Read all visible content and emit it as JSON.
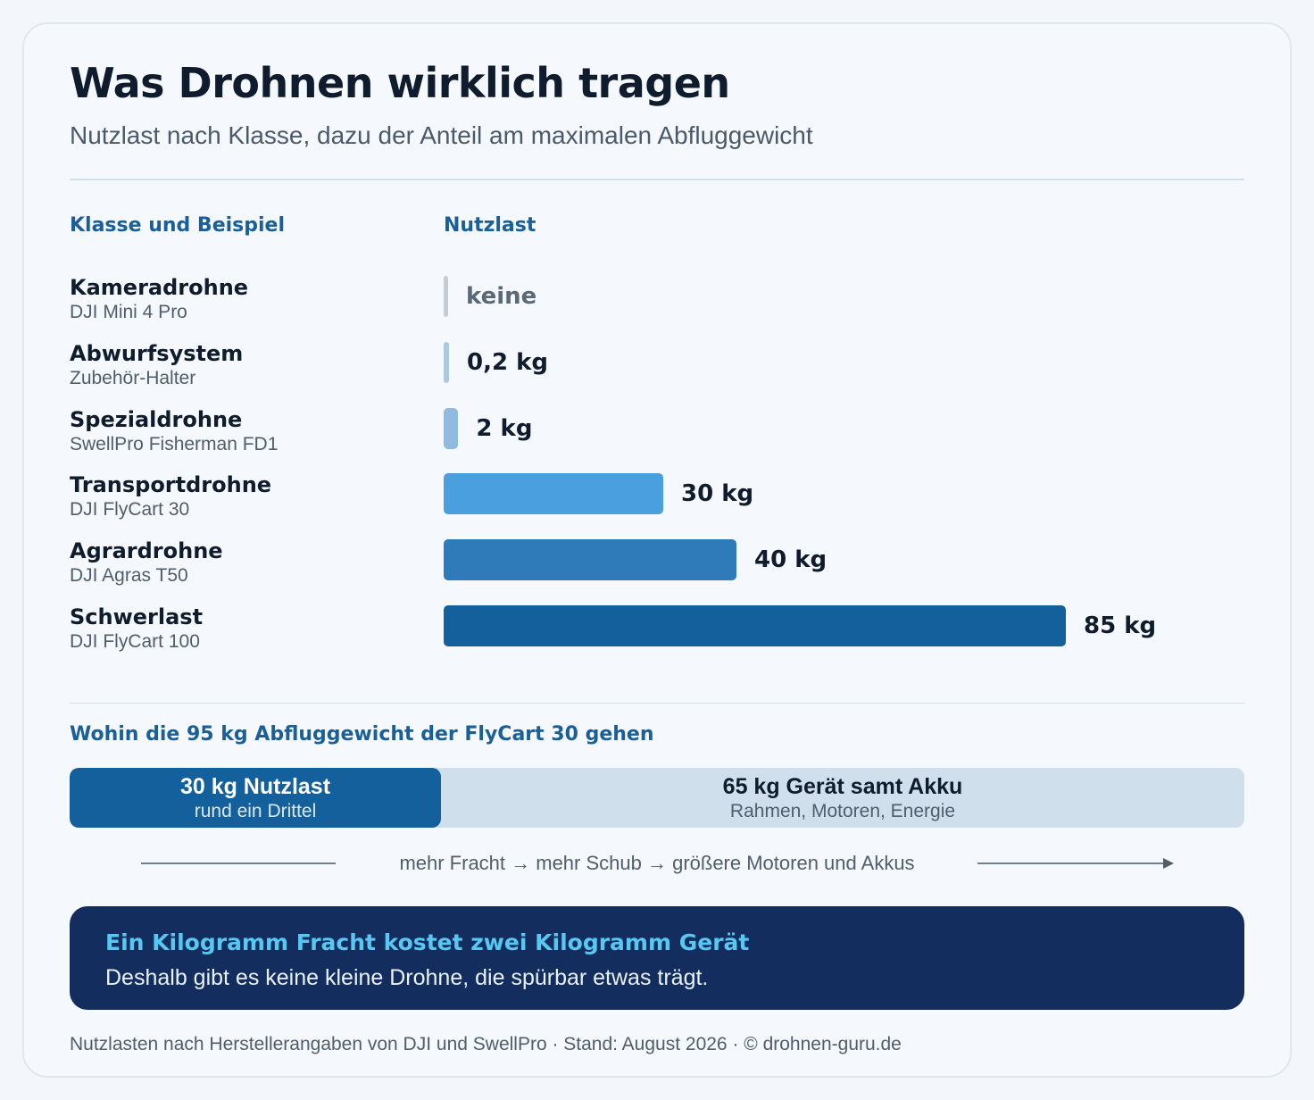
{
  "header": {
    "title": "Was Drohnen wirklich tragen",
    "subtitle": "Nutzlast nach Klasse, dazu der Anteil am maximalen Abfluggewicht"
  },
  "colors": {
    "bar_none": "#c4ccd6",
    "bar_small": "#a9c9e4",
    "bar_medium": "#8fbbe0",
    "bar_transport": "#4a9fdf",
    "bar_agrar": "#2f7ab8",
    "bar_heavy": "#14609d"
  },
  "chart_data": {
    "type": "bar",
    "orientation": "horizontal",
    "column_headers": [
      "Klasse und Beispiel",
      "Nutzlast"
    ],
    "categories": [
      "Kameradrohne",
      "Abwurfsystem",
      "Spezialdrohne",
      "Transportdrohne",
      "Agrardrohne",
      "Schwerlast"
    ],
    "examples": [
      "DJI Mini 4 Pro",
      "Zubehör-Halter",
      "SwellPro Fisherman FD1",
      "DJI FlyCart 30",
      "DJI Agras T50",
      "DJI FlyCart 100"
    ],
    "values": [
      0,
      0.2,
      2,
      30,
      40,
      85
    ],
    "value_labels": [
      "keine",
      "0,2 kg",
      "2 kg",
      "30 kg",
      "40 kg",
      "85 kg"
    ],
    "unit": "kg",
    "xlim": [
      0,
      85
    ],
    "grid": false
  },
  "split": {
    "title": "Wohin die 95 kg Abfluggewicht der FlyCart 30 gehen",
    "total": 95,
    "segments": [
      {
        "value": 30,
        "label": "30 kg Nutzlast",
        "sublabel": "rund ein Drittel"
      },
      {
        "value": 65,
        "label": "65 kg Gerät samt Akku",
        "sublabel": "Rahmen, Motoren, Energie"
      }
    ]
  },
  "flow_text": "mehr Fracht → mehr Schub → größere Motoren und Akkus",
  "callout": {
    "title": "Ein Kilogramm Fracht kostet zwei Kilogramm Gerät",
    "text": "Deshalb gibt es keine kleine Drohne, die spürbar etwas trägt."
  },
  "footer": "Nutzlasten nach Herstellerangaben von DJI und SwellPro · Stand: August 2026 · © drohnen-guru.de"
}
